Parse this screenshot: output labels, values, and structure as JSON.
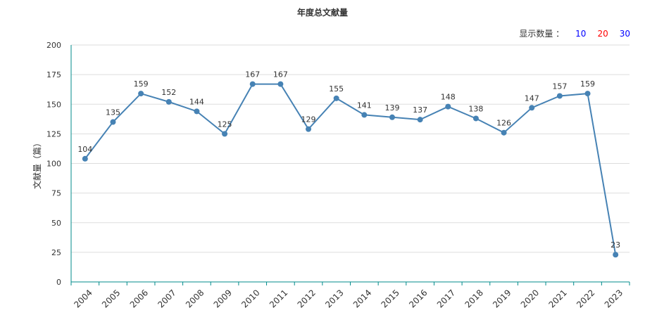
{
  "title": "年度总文献量",
  "display_count": {
    "label": "显示数量 ：",
    "options": [
      {
        "text": "10",
        "color": "#0000ff"
      },
      {
        "text": "20",
        "color": "#ff0000"
      },
      {
        "text": "30",
        "color": "#0000ff"
      }
    ]
  },
  "chart_data": {
    "type": "line",
    "title": "年度总文献量",
    "xlabel": "",
    "ylabel": "文献量（篇）",
    "ylim": [
      0,
      200
    ],
    "yticks": [
      0,
      25,
      50,
      75,
      100,
      125,
      150,
      175,
      200
    ],
    "categories": [
      "2004",
      "2005",
      "2006",
      "2007",
      "2008",
      "2009",
      "2010",
      "2011",
      "2012",
      "2013",
      "2014",
      "2015",
      "2016",
      "2017",
      "2018",
      "2019",
      "2020",
      "2021",
      "2022",
      "2023"
    ],
    "series": [
      {
        "values": [
          104,
          135,
          159,
          152,
          144,
          125,
          167,
          167,
          129,
          155,
          141,
          139,
          137,
          148,
          138,
          126,
          147,
          157,
          159,
          23
        ]
      }
    ],
    "grid": true,
    "line_color": "#4682b4",
    "axis_color": "#008b8b"
  }
}
